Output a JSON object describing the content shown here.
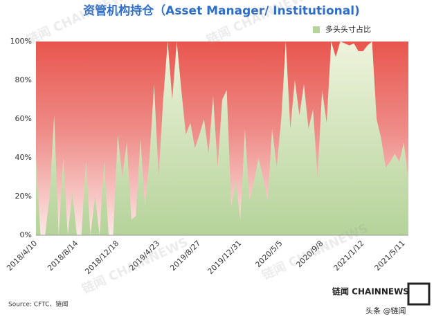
{
  "chart_data": {
    "type": "area",
    "title": "资管机构持仓（Asset Manager/ Institutional)",
    "source": "Source: CFTC、链闻",
    "watermark": "链闻 CHAINNEWS",
    "logo": "链闻 CHAINNEWS",
    "credit": "头条 @链闻",
    "categories": [
      "2018/4/10",
      null,
      null,
      null,
      null,
      null,
      null,
      null,
      null,
      "2018/8/14",
      null,
      null,
      null,
      null,
      null,
      null,
      null,
      null,
      "2018/12/18",
      null,
      null,
      null,
      null,
      null,
      null,
      null,
      null,
      "2019/4/23",
      null,
      null,
      null,
      null,
      null,
      null,
      null,
      null,
      "2019/8/27",
      null,
      null,
      null,
      null,
      null,
      null,
      null,
      null,
      "2019/12/31",
      null,
      null,
      null,
      null,
      null,
      null,
      null,
      null,
      "2020/5/5",
      null,
      null,
      null,
      null,
      null,
      null,
      null,
      null,
      "2020/9/8",
      null,
      null,
      null,
      null,
      null,
      null,
      null,
      null,
      "2021/1/12",
      null,
      null,
      null,
      null,
      null,
      null,
      null,
      null,
      "2021/5/11",
      null
    ],
    "series": [
      {
        "name": "多头头寸占比",
        "color": "#b5d39a",
        "values": [
          40,
          0,
          0,
          20,
          62,
          0,
          40,
          0,
          22,
          0,
          0,
          38,
          0,
          20,
          0,
          38,
          0,
          0,
          52,
          30,
          48,
          8,
          10,
          50,
          15,
          40,
          78,
          30,
          70,
          100,
          70,
          100,
          75,
          52,
          58,
          45,
          52,
          60,
          42,
          72,
          35,
          70,
          75,
          15,
          28,
          8,
          55,
          18,
          28,
          40,
          30,
          18,
          55,
          35,
          60,
          100,
          55,
          80,
          62,
          78,
          55,
          65,
          30,
          75,
          58,
          100,
          92,
          100,
          99,
          98,
          99,
          95,
          95,
          98,
          100,
          60,
          50,
          35,
          38,
          42,
          38,
          48,
          28
        ]
      }
    ],
    "background_color": "#e8564e",
    "ylim": [
      0,
      100
    ],
    "yticks": [
      {
        "value": 0,
        "label": "0%"
      },
      {
        "value": 20,
        "label": "20%"
      },
      {
        "value": 40,
        "label": "40%"
      },
      {
        "value": 60,
        "label": "60%"
      },
      {
        "value": 80,
        "label": "80%"
      },
      {
        "value": 100,
        "label": "100%"
      }
    ],
    "legend": "top-right"
  }
}
